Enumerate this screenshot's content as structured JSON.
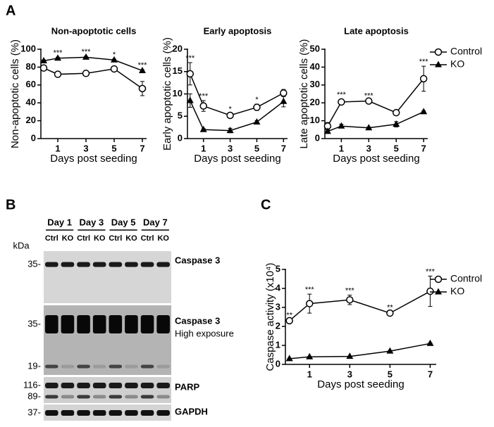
{
  "panels": [
    "A",
    "B",
    "C"
  ],
  "chart_data": [
    {
      "type": "line",
      "title": "Non-apoptotic cells",
      "xlabel": "Days post seeding",
      "ylabel": "Non-apoptotic cells (%)",
      "x": [
        0,
        1,
        3,
        5,
        7
      ],
      "xlim": [
        -0.2,
        7.3
      ],
      "xticks": [
        1,
        3,
        5,
        7
      ],
      "ylim": [
        0,
        100
      ],
      "yticks": [
        0,
        20,
        40,
        60,
        80,
        100
      ],
      "series": [
        {
          "color": "#000000",
          "marker": "circle-open",
          "values": [
            79,
            72,
            73,
            78,
            56
          ],
          "errors": [
            3,
            3,
            1,
            2,
            8
          ]
        },
        {
          "color": "#000000",
          "marker": "triangle",
          "values": [
            87,
            90,
            91,
            88,
            76
          ],
          "errors": [
            1,
            1,
            1,
            1,
            1
          ]
        }
      ],
      "annotations": [
        {
          "x": 1,
          "text": "***"
        },
        {
          "x": 3,
          "text": "***"
        },
        {
          "x": 5,
          "text": "*"
        },
        {
          "x": 7,
          "text": "***"
        }
      ]
    },
    {
      "type": "line",
      "title": "Early apoptosis",
      "xlabel": "Days post seeding",
      "ylabel": "Early apoptotic cells (%)",
      "x": [
        0,
        1,
        3,
        5,
        7
      ],
      "xlim": [
        -0.2,
        7.3
      ],
      "xticks": [
        1,
        3,
        5,
        7
      ],
      "ylim": [
        0,
        20
      ],
      "yticks": [
        0,
        5,
        10,
        15,
        20
      ],
      "series": [
        {
          "color": "#000000",
          "marker": "circle-open",
          "values": [
            14.5,
            7.3,
            5.2,
            7.0,
            10.2
          ],
          "errors": [
            2.5,
            1.2,
            0.4,
            0.7,
            0.8
          ]
        },
        {
          "color": "#000000",
          "marker": "triangle",
          "values": [
            8.5,
            2.0,
            1.8,
            3.7,
            8.3
          ],
          "errors": [
            1.5,
            0.2,
            0.5,
            0.3,
            1.2
          ]
        }
      ],
      "annotations": [
        {
          "x": 0,
          "text": "***"
        },
        {
          "x": 1,
          "text": "***"
        },
        {
          "x": 3,
          "text": "*"
        },
        {
          "x": 5,
          "text": "*"
        }
      ]
    },
    {
      "type": "line",
      "title": "Late apoptosis",
      "xlabel": "Days post seeding",
      "ylabel": "Late apoptotic cells (%)",
      "x": [
        0,
        1,
        3,
        5,
        7
      ],
      "xlim": [
        -0.2,
        7.3
      ],
      "xticks": [
        1,
        3,
        5,
        7
      ],
      "ylim": [
        0,
        50
      ],
      "yticks": [
        0,
        10,
        20,
        30,
        40,
        50
      ],
      "legend": "right",
      "series": [
        {
          "name": "Control",
          "color": "#000000",
          "marker": "circle-open",
          "values": [
            7,
            20.5,
            21,
            14.5,
            33.5
          ],
          "errors": [
            2,
            1.5,
            0.5,
            1,
            7
          ]
        },
        {
          "name": "KO",
          "color": "#000000",
          "marker": "triangle",
          "values": [
            4,
            7,
            6,
            8,
            15
          ],
          "errors": [
            1,
            1,
            0.5,
            1.5,
            0.5
          ]
        }
      ],
      "annotations": [
        {
          "x": 1,
          "text": "***"
        },
        {
          "x": 3,
          "text": "***"
        },
        {
          "x": 7,
          "text": "***"
        }
      ]
    },
    {
      "type": "line",
      "xlabel": "Days post seeding",
      "ylabel": "Caspase activity (x10⁴)",
      "x": [
        0,
        1,
        3,
        5,
        7
      ],
      "xlim": [
        -0.2,
        7.3
      ],
      "xticks": [
        1,
        3,
        5,
        7
      ],
      "ylim": [
        0,
        5
      ],
      "yticks": [
        0,
        1,
        2,
        3,
        4,
        5
      ],
      "legend": "upper-right",
      "series": [
        {
          "name": "Control",
          "color": "#000000",
          "marker": "circle-open",
          "values": [
            2.3,
            3.2,
            3.4,
            2.7,
            3.85
          ],
          "errors": [
            0.05,
            0.5,
            0.25,
            0.05,
            0.8
          ]
        },
        {
          "name": "KO",
          "color": "#000000",
          "marker": "triangle",
          "values": [
            0.3,
            0.4,
            0.42,
            0.7,
            1.1
          ],
          "errors": [
            0.02,
            0.02,
            0.02,
            0.03,
            0.03
          ]
        }
      ],
      "annotations": [
        {
          "x": 0,
          "text": "**"
        },
        {
          "x": 1,
          "text": "***"
        },
        {
          "x": 3,
          "text": "***"
        },
        {
          "x": 5,
          "text": "**"
        },
        {
          "x": 7,
          "text": "***"
        }
      ]
    }
  ],
  "blot": {
    "unit": "kDa",
    "days": [
      "Day 1",
      "Day 3",
      "Day 5",
      "Day 7"
    ],
    "lanes": [
      "Ctrl",
      "KO",
      "Ctrl",
      "KO",
      "Ctrl",
      "KO",
      "Ctrl",
      "KO"
    ],
    "rows": [
      {
        "label": "Caspase 3",
        "markers": [
          "35-"
        ]
      },
      {
        "label": "Caspase 3",
        "sublabel": "High exposure",
        "markers": [
          "35-",
          "19-"
        ]
      },
      {
        "label": "PARP",
        "markers": [
          "116-",
          "89-"
        ]
      },
      {
        "label": "GAPDH",
        "markers": [
          "37-"
        ]
      }
    ]
  }
}
